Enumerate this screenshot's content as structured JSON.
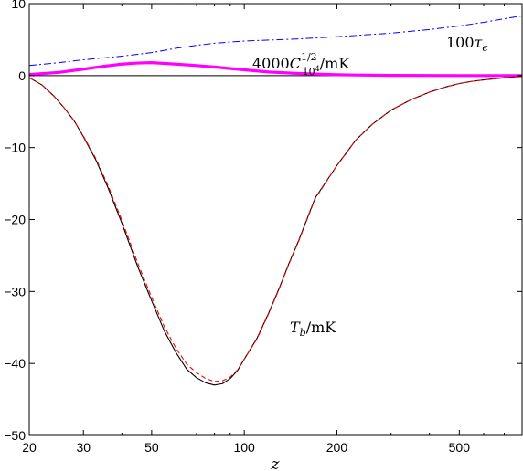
{
  "chart_data": {
    "type": "line",
    "xscale": "log",
    "xlim": [
      20,
      800
    ],
    "ylim": [
      -50,
      10
    ],
    "xlabel": "z",
    "ylabel": "",
    "xticks": [
      20,
      30,
      50,
      100,
      200,
      500
    ],
    "xtick_labels": [
      "20",
      "30",
      "50",
      "100",
      "200",
      "500"
    ],
    "yticks": [
      -50,
      -40,
      -30,
      -20,
      -10,
      0,
      10
    ],
    "ytick_labels": [
      "−50",
      "−40",
      "−30",
      "−20",
      "−10",
      "0",
      "10"
    ],
    "grid": false,
    "annotations": [
      {
        "id": "tau",
        "text": "100τ_ε",
        "x": 520,
        "y": 4.8
      },
      {
        "id": "c10",
        "text": "4000C_{10^4}^{1/2}/mK",
        "x": 160,
        "y": 1.2
      },
      {
        "id": "tb",
        "text": "T_b/mK",
        "x": 140,
        "y": -35
      }
    ],
    "series": [
      {
        "id": "tau",
        "color": "#0000ff",
        "style": "dashdot",
        "x": [
          20,
          25,
          30,
          40,
          50,
          60,
          70,
          80,
          100,
          150,
          200,
          300,
          400,
          500,
          600,
          700,
          800
        ],
        "y": [
          1.4,
          1.8,
          2.2,
          2.7,
          3.2,
          3.8,
          4.2,
          4.5,
          4.8,
          5.1,
          5.4,
          5.9,
          6.4,
          6.9,
          7.4,
          7.9,
          8.3
        ]
      },
      {
        "id": "c10",
        "color": "#ff00ff",
        "style": "thick",
        "x": [
          20,
          25,
          30,
          35,
          40,
          45,
          50,
          60,
          70,
          80,
          100,
          120,
          150,
          200,
          300,
          500,
          800
        ],
        "y": [
          0.15,
          0.45,
          0.9,
          1.3,
          1.6,
          1.75,
          1.8,
          1.6,
          1.4,
          1.2,
          0.8,
          0.5,
          0.3,
          0.12,
          0.03,
          0.0,
          0.0
        ]
      },
      {
        "id": "tb",
        "color": "#000000",
        "style": "solid",
        "x": [
          20,
          22,
          24,
          26,
          28,
          30,
          33,
          36,
          40,
          45,
          50,
          55,
          60,
          65,
          70,
          75,
          80,
          85,
          90,
          95,
          100,
          110,
          120,
          130,
          140,
          150,
          170,
          200,
          230,
          260,
          300,
          350,
          400,
          450,
          500,
          550,
          600,
          700,
          800
        ],
        "y": [
          -0.3,
          -1.3,
          -2.8,
          -4.5,
          -6.3,
          -8.5,
          -11.8,
          -15.5,
          -20.5,
          -26.5,
          -31.3,
          -35.5,
          -38.5,
          -40.8,
          -42.0,
          -42.7,
          -43.0,
          -42.8,
          -42.1,
          -41.0,
          -39.4,
          -36.5,
          -33.0,
          -29.5,
          -26.0,
          -23.0,
          -17.0,
          -12.5,
          -9.0,
          -6.8,
          -4.8,
          -3.3,
          -2.3,
          -1.6,
          -1.1,
          -0.8,
          -0.6,
          -0.3,
          -0.1
        ]
      },
      {
        "id": "tb-approx",
        "color": "#ff0000",
        "style": "dashed",
        "x": [
          20,
          22,
          24,
          26,
          28,
          30,
          33,
          36,
          40,
          45,
          50,
          55,
          60,
          65,
          70,
          75,
          80,
          85,
          90,
          95,
          100,
          110,
          120,
          130,
          140,
          150,
          170,
          200,
          230,
          260,
          300,
          350,
          400,
          450,
          500,
          550,
          600,
          700,
          800
        ],
        "y": [
          -0.3,
          -1.3,
          -2.8,
          -4.5,
          -6.3,
          -8.4,
          -11.6,
          -15.2,
          -20.1,
          -26.0,
          -30.8,
          -34.9,
          -37.9,
          -40.1,
          -41.3,
          -42.1,
          -42.5,
          -42.4,
          -41.9,
          -40.9,
          -39.4,
          -36.6,
          -33.1,
          -29.6,
          -26.1,
          -23.1,
          -17.1,
          -12.5,
          -9.0,
          -6.8,
          -4.8,
          -3.3,
          -2.3,
          -1.6,
          -1.1,
          -0.8,
          -0.6,
          -0.3,
          -0.1
        ]
      }
    ]
  }
}
